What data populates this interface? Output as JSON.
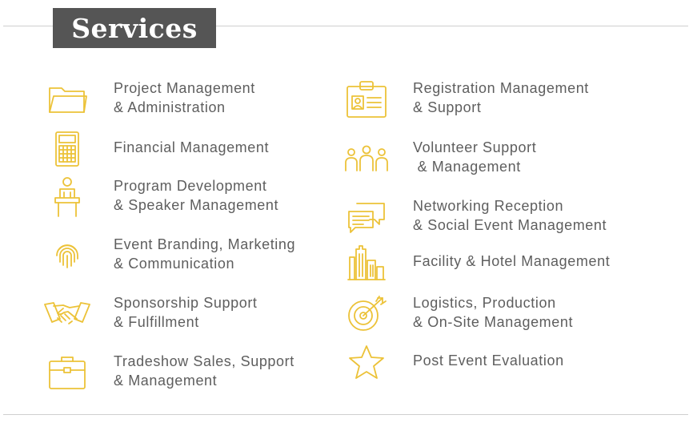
{
  "header": {
    "title": "Services"
  },
  "left_column": [
    {
      "icon": "folder-icon",
      "line1": "Project Management",
      "line2": "& Administration"
    },
    {
      "icon": "calculator-icon",
      "line1": "Financial Management",
      "line2": ""
    },
    {
      "icon": "speaker-podium-icon",
      "line1": "Program Development",
      "line2": "& Speaker Management"
    },
    {
      "icon": "fingerprint-icon",
      "line1": "Event Branding, Marketing",
      "line2": "& Communication"
    },
    {
      "icon": "handshake-icon",
      "line1": "Sponsorship Support",
      "line2": "& Fulfillment"
    },
    {
      "icon": "briefcase-icon",
      "line1": "Tradeshow Sales, Support",
      "line2": "& Management"
    }
  ],
  "right_column": [
    {
      "icon": "id-badge-icon",
      "line1": "Registration Management",
      "line2": "& Support"
    },
    {
      "icon": "people-group-icon",
      "line1": "Volunteer Support",
      "line2": " & Management"
    },
    {
      "icon": "chat-bubbles-icon",
      "line1": "Networking Reception",
      "line2": "& Social Event Management"
    },
    {
      "icon": "buildings-icon",
      "line1": "Facility & Hotel Management",
      "line2": ""
    },
    {
      "icon": "target-icon",
      "line1": "Logistics, Production",
      "line2": "& On-Site Management"
    },
    {
      "icon": "star-icon",
      "line1": "Post Event Evaluation",
      "line2": ""
    }
  ],
  "colors": {
    "accent": "#ecc238",
    "title_bg": "#555555",
    "text": "#5e5e5e",
    "rule": "#cfcfcf"
  }
}
